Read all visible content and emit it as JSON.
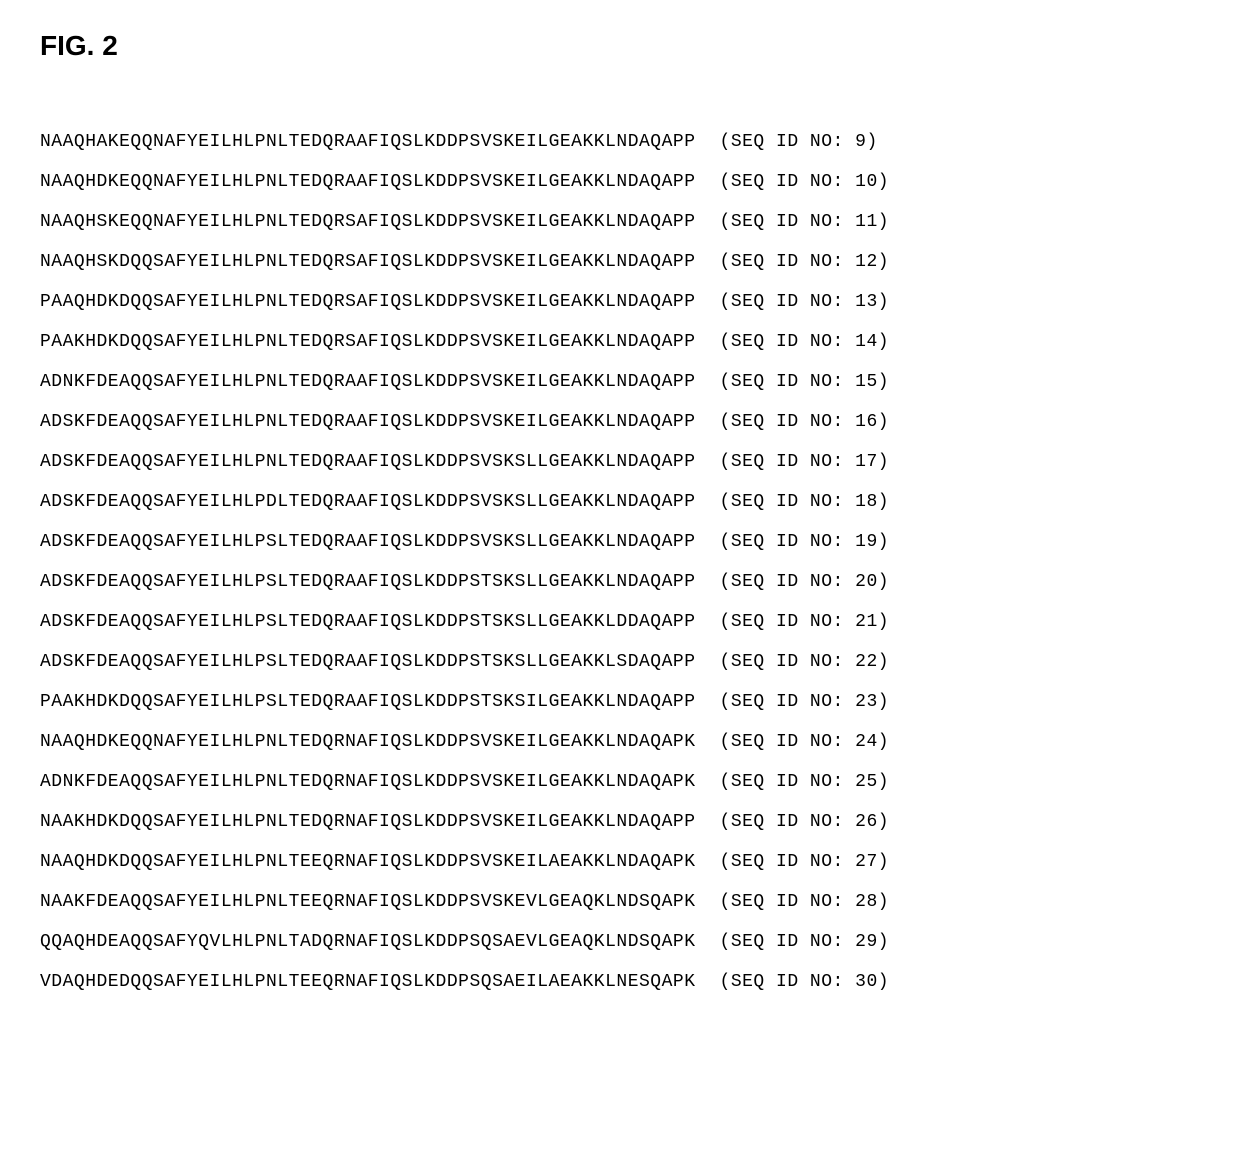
{
  "figure_title": "FIG. 2",
  "font_family_title": "Arial",
  "font_family_body": "Courier New",
  "title_fontsize": 28,
  "body_fontsize": 18,
  "background_color": "#ffffff",
  "text_color": "#000000",
  "row_spacing": 20,
  "sequences": [
    {
      "seq": "NAAQHAKEQQNAFYEILHLPNLTEDQRAAFIQSLKDDPSVSKEILGEAKKLNDAQAPP",
      "id": "(SEQ ID NO: 9)"
    },
    {
      "seq": "NAAQHDKEQQNAFYEILHLPNLTEDQRAAFIQSLKDDPSVSKEILGEAKKLNDAQAPP",
      "id": "(SEQ ID NO: 10)"
    },
    {
      "seq": "NAAQHSKEQQNAFYEILHLPNLTEDQRSAFIQSLKDDPSVSKEILGEAKKLNDAQAPP",
      "id": "(SEQ ID NO: 11)"
    },
    {
      "seq": "NAAQHSKDQQSAFYEILHLPNLTEDQRSAFIQSLKDDPSVSKEILGEAKKLNDAQAPP",
      "id": "(SEQ ID NO: 12)"
    },
    {
      "seq": "PAAQHDKDQQSAFYEILHLPNLTEDQRSAFIQSLKDDPSVSKEILGEAKKLNDAQAPP",
      "id": "(SEQ ID NO: 13)"
    },
    {
      "seq": "PAAKHDKDQQSAFYEILHLPNLTEDQRSAFIQSLKDDPSVSKEILGEAKKLNDAQAPP",
      "id": "(SEQ ID NO: 14)"
    },
    {
      "seq": "ADNKFDEAQQSAFYEILHLPNLTEDQRAAFIQSLKDDPSVSKEILGEAKKLNDAQAPP",
      "id": "(SEQ ID NO: 15)"
    },
    {
      "seq": "ADSKFDEAQQSAFYEILHLPNLTEDQRAAFIQSLKDDPSVSKEILGEAKKLNDAQAPP",
      "id": "(SEQ ID NO: 16)"
    },
    {
      "seq": "ADSKFDEAQQSAFYEILHLPNLTEDQRAAFIQSLKDDPSVSKSLLGEAKKLNDAQAPP",
      "id": "(SEQ ID NO: 17)"
    },
    {
      "seq": "ADSKFDEAQQSAFYEILHLPDLTEDQRAAFIQSLKDDPSVSKSLLGEAKKLNDAQAPP",
      "id": "(SEQ ID NO: 18)"
    },
    {
      "seq": "ADSKFDEAQQSAFYEILHLPSLTEDQRAAFIQSLKDDPSVSKSLLGEAKKLNDAQAPP",
      "id": "(SEQ ID NO: 19)"
    },
    {
      "seq": "ADSKFDEAQQSAFYEILHLPSLTEDQRAAFIQSLKDDPSTSKSLLGEAKKLNDAQAPP",
      "id": "(SEQ ID NO: 20)"
    },
    {
      "seq": "ADSKFDEAQQSAFYEILHLPSLTEDQRAAFIQSLKDDPSTSKSLLGEAKKLDDAQAPP",
      "id": "(SEQ ID NO: 21)"
    },
    {
      "seq": "ADSKFDEAQQSAFYEILHLPSLTEDQRAAFIQSLKDDPSTSKSLLGEAKKLSDAQAPP",
      "id": "(SEQ ID NO: 22)"
    },
    {
      "seq": "PAAKHDKDQQSAFYEILHLPSLTEDQRAAFIQSLKDDPSTSKSILGEAKKLNDAQAPP",
      "id": "(SEQ ID NO: 23)"
    },
    {
      "seq": "NAAQHDKEQQNAFYEILHLPNLTEDQRNAFIQSLKDDPSVSKEILGEAKKLNDAQAPK",
      "id": "(SEQ ID NO: 24)"
    },
    {
      "seq": "ADNKFDEAQQSAFYEILHLPNLTEDQRNAFIQSLKDDPSVSKEILGEAKKLNDAQAPK",
      "id": "(SEQ ID NO: 25)"
    },
    {
      "seq": "NAAKHDKDQQSAFYEILHLPNLTEDQRNAFIQSLKDDPSVSKEILGEAKKLNDAQAPP",
      "id": "(SEQ ID NO: 26)"
    },
    {
      "seq": "NAAQHDKDQQSAFYEILHLPNLTEEQRNAFIQSLKDDPSVSKEILAEAKKLNDAQAPK",
      "id": "(SEQ ID NO: 27)"
    },
    {
      "seq": "NAAKFDEAQQSAFYEILHLPNLTEEQRNAFIQSLKDDPSVSKEVLGEAQKLNDSQAPK",
      "id": "(SEQ ID NO: 28)"
    },
    {
      "seq": "QQAQHDEAQQSAFYQVLHLPNLTADQRNAFIQSLKDDPSQSAEVLGEAQKLNDSQAPK",
      "id": "(SEQ ID NO: 29)"
    },
    {
      "seq": "VDAQHDEDQQSAFYEILHLPNLTEEQRNAFIQSLKDDPSQSAEILAEAKKLNESQAPK",
      "id": "(SEQ ID NO: 30)"
    }
  ]
}
